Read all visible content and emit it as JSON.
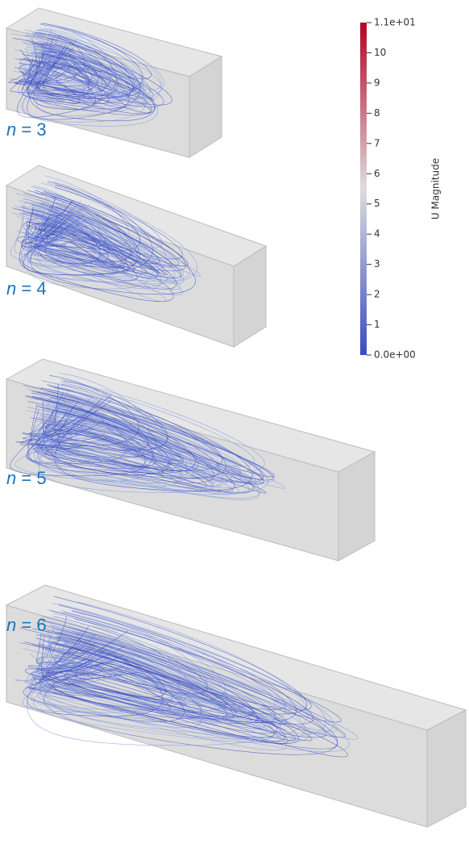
{
  "panels": [
    {
      "symbol": "n",
      "rest": "= 3"
    },
    {
      "symbol": "n",
      "rest": "= 4"
    },
    {
      "symbol": "n",
      "rest": "= 5"
    },
    {
      "symbol": "n",
      "rest": "= 6"
    }
  ],
  "colorbar": {
    "title": "U Magnitude",
    "ticks": [
      {
        "value": 0,
        "label": "0.0e+00"
      },
      1,
      2,
      3,
      4,
      5,
      6,
      7,
      8,
      9,
      10,
      {
        "value": 11,
        "label": "1.1e+01"
      }
    ],
    "colors": [
      "#3b4cc0",
      "#dddddd",
      "#b40426"
    ]
  }
}
